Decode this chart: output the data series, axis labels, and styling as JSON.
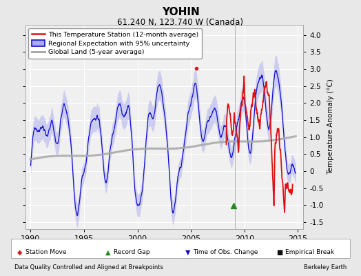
{
  "title": "YOHIN",
  "subtitle": "61.240 N, 123.740 W (Canada)",
  "ylabel": "Temperature Anomaly (°C)",
  "xlabel_left": "Data Quality Controlled and Aligned at Breakpoints",
  "xlabel_right": "Berkeley Earth",
  "xlim": [
    1989.5,
    2015.5
  ],
  "ylim": [
    -1.7,
    4.3
  ],
  "yticks": [
    -1.5,
    -1.0,
    -0.5,
    0.0,
    0.5,
    1.0,
    1.5,
    2.0,
    2.5,
    3.0,
    3.5,
    4.0
  ],
  "xticks": [
    1990,
    1995,
    2000,
    2005,
    2010,
    2015
  ],
  "background_color": "#e8e8e8",
  "plot_background": "#f0f0f0",
  "grid_color": "#ffffff",
  "station_line_color": "#dd1111",
  "regional_line_color": "#1111cc",
  "regional_fill_color": "#aaaaee",
  "global_line_color": "#aaaaaa",
  "vline_color": "#888888",
  "vline_x": 2009.1,
  "marker_record_gap_x": 2005.5,
  "marker_record_gap_y": 3.02,
  "marker_obs_change_x": 2009.0,
  "marker_obs_change_y": -1.02,
  "legend_entries": [
    "This Temperature Station (12-month average)",
    "Regional Expectation with 95% uncertainty",
    "Global Land (5-year average)"
  ]
}
